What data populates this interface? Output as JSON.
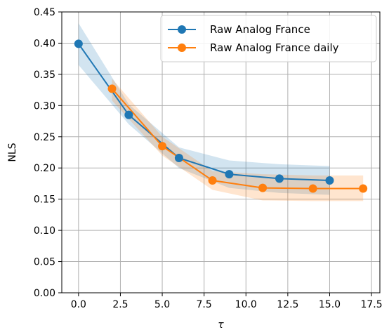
{
  "chart_data": {
    "type": "line",
    "title": "",
    "xlabel": "τ",
    "ylabel": "NLS",
    "xlim": [
      -1.0,
      18.0
    ],
    "ylim": [
      0.0,
      0.45
    ],
    "xticks": [
      0.0,
      2.5,
      5.0,
      7.5,
      10.0,
      12.5,
      15.0,
      17.5
    ],
    "xtick_labels": [
      "0.0",
      "2.5",
      "5.0",
      "7.5",
      "10.0",
      "12.5",
      "15.0",
      "17.5"
    ],
    "yticks": [
      0.0,
      0.05,
      0.1,
      0.15,
      0.2,
      0.25,
      0.3,
      0.35,
      0.4,
      0.45
    ],
    "ytick_labels": [
      "0.00",
      "0.05",
      "0.10",
      "0.15",
      "0.20",
      "0.25",
      "0.30",
      "0.35",
      "0.40",
      "0.45"
    ],
    "grid": true,
    "legend_position": "top-right",
    "series": [
      {
        "name": "Raw Analog France",
        "color": "#1f77b4",
        "x": [
          0,
          3,
          6,
          9,
          12,
          15
        ],
        "y": [
          0.399,
          0.285,
          0.216,
          0.19,
          0.183,
          0.18
        ],
        "band_lower": [
          0.365,
          0.27,
          0.2,
          0.168,
          0.16,
          0.157
        ],
        "band_upper": [
          0.432,
          0.302,
          0.233,
          0.212,
          0.206,
          0.203
        ]
      },
      {
        "name": "Raw Analog France daily",
        "color": "#ff7f0e",
        "x": [
          2,
          5,
          8,
          11,
          14,
          17
        ],
        "y": [
          0.327,
          0.235,
          0.18,
          0.168,
          0.167,
          0.167
        ],
        "band_lower": [
          0.308,
          0.22,
          0.165,
          0.148,
          0.147,
          0.147
        ],
        "band_upper": [
          0.343,
          0.25,
          0.195,
          0.19,
          0.188,
          0.188
        ]
      }
    ]
  }
}
